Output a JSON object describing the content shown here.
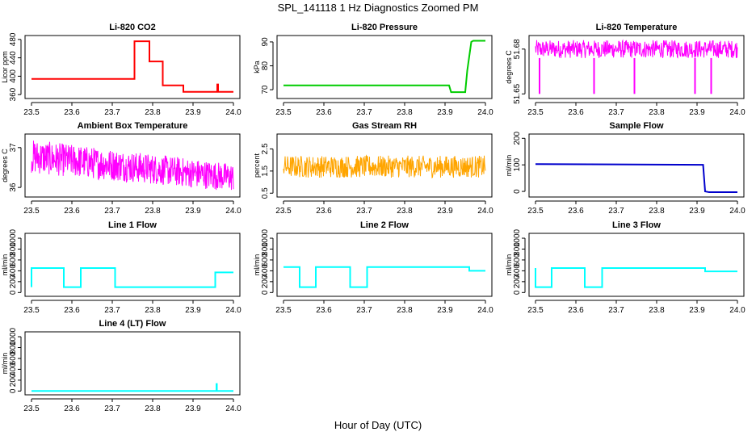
{
  "figure": {
    "title": "SPL_141118  1 Hz Diagnostics Zoomed PM",
    "xlabel": "Hour of Day (UTC)"
  },
  "chart_data": [
    {
      "type": "line",
      "title": "Li-820 CO2",
      "ylabel": "Licor ppm",
      "color": "#ff0000",
      "xlim": [
        23.5,
        24.0
      ],
      "xticks": [
        "23.5",
        "23.6",
        "23.7",
        "23.8",
        "23.9",
        "24.0"
      ],
      "ylim": [
        355,
        485
      ],
      "yticks": [
        360,
        400,
        440,
        480
      ],
      "series": [
        {
          "x": [
            23.5,
            23.755,
            23.755,
            23.792,
            23.792,
            23.825,
            23.825,
            23.876,
            23.876,
            23.96,
            23.96,
            23.962,
            23.962,
            24.0
          ],
          "y": [
            394,
            394,
            476,
            476,
            432,
            432,
            380,
            380,
            366,
            366,
            382,
            382,
            366,
            366
          ]
        }
      ]
    },
    {
      "type": "line",
      "title": "Li-820 Pressure",
      "ylabel": "kPa",
      "color": "#00cc00",
      "xlim": [
        23.5,
        24.0
      ],
      "xticks": [
        "23.5",
        "23.6",
        "23.7",
        "23.8",
        "23.9",
        "24.0"
      ],
      "ylim": [
        67,
        92
      ],
      "yticks": [
        70,
        80,
        90
      ],
      "series": [
        {
          "x": [
            23.5,
            23.91,
            23.915,
            23.95,
            23.955,
            23.96,
            23.965,
            23.97,
            24.0
          ],
          "y": [
            71.8,
            71.8,
            69,
            69,
            78,
            84,
            90,
            90.5,
            90.5
          ]
        }
      ]
    },
    {
      "type": "line",
      "title": "Li-820 Temperature",
      "ylabel": "degrees C",
      "color": "#ff00ff",
      "xlim": [
        23.5,
        24.0
      ],
      "xticks": [
        "23.5",
        "23.6",
        "23.7",
        "23.8",
        "23.9",
        "24.0"
      ],
      "ylim": [
        51.648,
        51.688
      ],
      "yticks": [
        51.65,
        51.68
      ],
      "band": [
        51.674,
        51.686
      ],
      "spikes": [
        {
          "x": 23.51,
          "y": 51.65
        },
        {
          "x": 23.645,
          "y": 51.65
        },
        {
          "x": 23.745,
          "y": 51.65
        },
        {
          "x": 23.895,
          "y": 51.65
        },
        {
          "x": 23.935,
          "y": 51.65
        }
      ]
    },
    {
      "type": "line",
      "title": "Ambient Box Temperature",
      "ylabel": "degrees C",
      "color": "#ff00ff",
      "xlim": [
        23.5,
        24.0
      ],
      "xticks": [
        "23.5",
        "23.6",
        "23.7",
        "23.8",
        "23.9",
        "24.0"
      ],
      "ylim": [
        35.8,
        37.3
      ],
      "yticks": [
        36.0,
        37.0
      ],
      "band_start": [
        36.35,
        37.2
      ],
      "band_end": [
        35.9,
        36.6
      ]
    },
    {
      "type": "line",
      "title": "Gas Stream RH",
      "ylabel": "percent",
      "color": "#ffa500",
      "xlim": [
        23.5,
        24.0
      ],
      "xticks": [
        "23.5",
        "23.6",
        "23.7",
        "23.8",
        "23.9",
        "24.0"
      ],
      "ylim": [
        0.4,
        3.1
      ],
      "yticks": [
        0.5,
        1.5,
        2.5
      ],
      "band": [
        1.2,
        2.2
      ]
    },
    {
      "type": "line",
      "title": "Sample Flow",
      "ylabel": "ml/min",
      "color": "#0000cc",
      "xlim": [
        23.5,
        24.0
      ],
      "xticks": [
        "23.5",
        "23.6",
        "23.7",
        "23.8",
        "23.9",
        "24.0"
      ],
      "ylim": [
        -15,
        210
      ],
      "yticks": [
        0,
        100,
        200
      ],
      "series": [
        {
          "x": [
            23.5,
            23.915,
            23.92,
            23.93,
            24.0
          ],
          "y": [
            103,
            100,
            0,
            -3,
            -3
          ]
        }
      ]
    },
    {
      "type": "line",
      "title": "Line 1 Flow",
      "ylabel": "ml/min",
      "color": "#00ffff",
      "xlim": [
        23.5,
        24.0
      ],
      "xticks": [
        "23.5",
        "23.6",
        "23.7",
        "23.8",
        "23.9",
        "24.0"
      ],
      "ylim": [
        -40,
        1060
      ],
      "yticks": [
        0,
        200,
        400,
        600,
        800,
        1000
      ],
      "series": [
        {
          "x": [
            23.5,
            23.5,
            23.58,
            23.58,
            23.622,
            23.622,
            23.707,
            23.707,
            23.955,
            23.955,
            24.0
          ],
          "y": [
            100,
            450,
            450,
            100,
            100,
            450,
            450,
            100,
            100,
            370,
            370
          ]
        }
      ]
    },
    {
      "type": "line",
      "title": "Line 2 Flow",
      "ylabel": "ml/min",
      "color": "#00ffff",
      "xlim": [
        23.5,
        24.0
      ],
      "xticks": [
        "23.5",
        "23.6",
        "23.7",
        "23.8",
        "23.9",
        "24.0"
      ],
      "ylim": [
        -40,
        1060
      ],
      "yticks": [
        0,
        200,
        400,
        600,
        800,
        1000
      ],
      "series": [
        {
          "x": [
            23.5,
            23.54,
            23.54,
            23.58,
            23.58,
            23.665,
            23.665,
            23.707,
            23.707,
            23.96,
            23.96,
            24.0
          ],
          "y": [
            470,
            470,
            100,
            100,
            470,
            470,
            100,
            100,
            470,
            470,
            400,
            400
          ]
        }
      ]
    },
    {
      "type": "line",
      "title": "Line 3 Flow",
      "ylabel": "ml/min",
      "color": "#00ffff",
      "xlim": [
        23.5,
        24.0
      ],
      "xticks": [
        "23.5",
        "23.6",
        "23.7",
        "23.8",
        "23.9",
        "24.0"
      ],
      "ylim": [
        -40,
        1060
      ],
      "yticks": [
        0,
        200,
        400,
        600,
        800,
        1000
      ],
      "series": [
        {
          "x": [
            23.5,
            23.5,
            23.54,
            23.54,
            23.622,
            23.622,
            23.665,
            23.665,
            23.92,
            23.92,
            24.0
          ],
          "y": [
            450,
            100,
            100,
            450,
            450,
            100,
            100,
            450,
            450,
            390,
            390
          ]
        }
      ]
    },
    {
      "type": "line",
      "title": "Line 4 (LT) Flow",
      "ylabel": "ml/min",
      "color": "#00ffff",
      "xlim": [
        23.5,
        24.0
      ],
      "xticks": [
        "23.5",
        "23.6",
        "23.7",
        "23.8",
        "23.9",
        "24.0"
      ],
      "ylim": [
        -40,
        1060
      ],
      "yticks": [
        0,
        200,
        400,
        600,
        800,
        1000
      ],
      "series": [
        {
          "x": [
            23.5,
            23.958,
            23.958,
            23.959,
            23.959,
            24.0
          ],
          "y": [
            0,
            0,
            130,
            130,
            0,
            0
          ]
        }
      ]
    }
  ]
}
